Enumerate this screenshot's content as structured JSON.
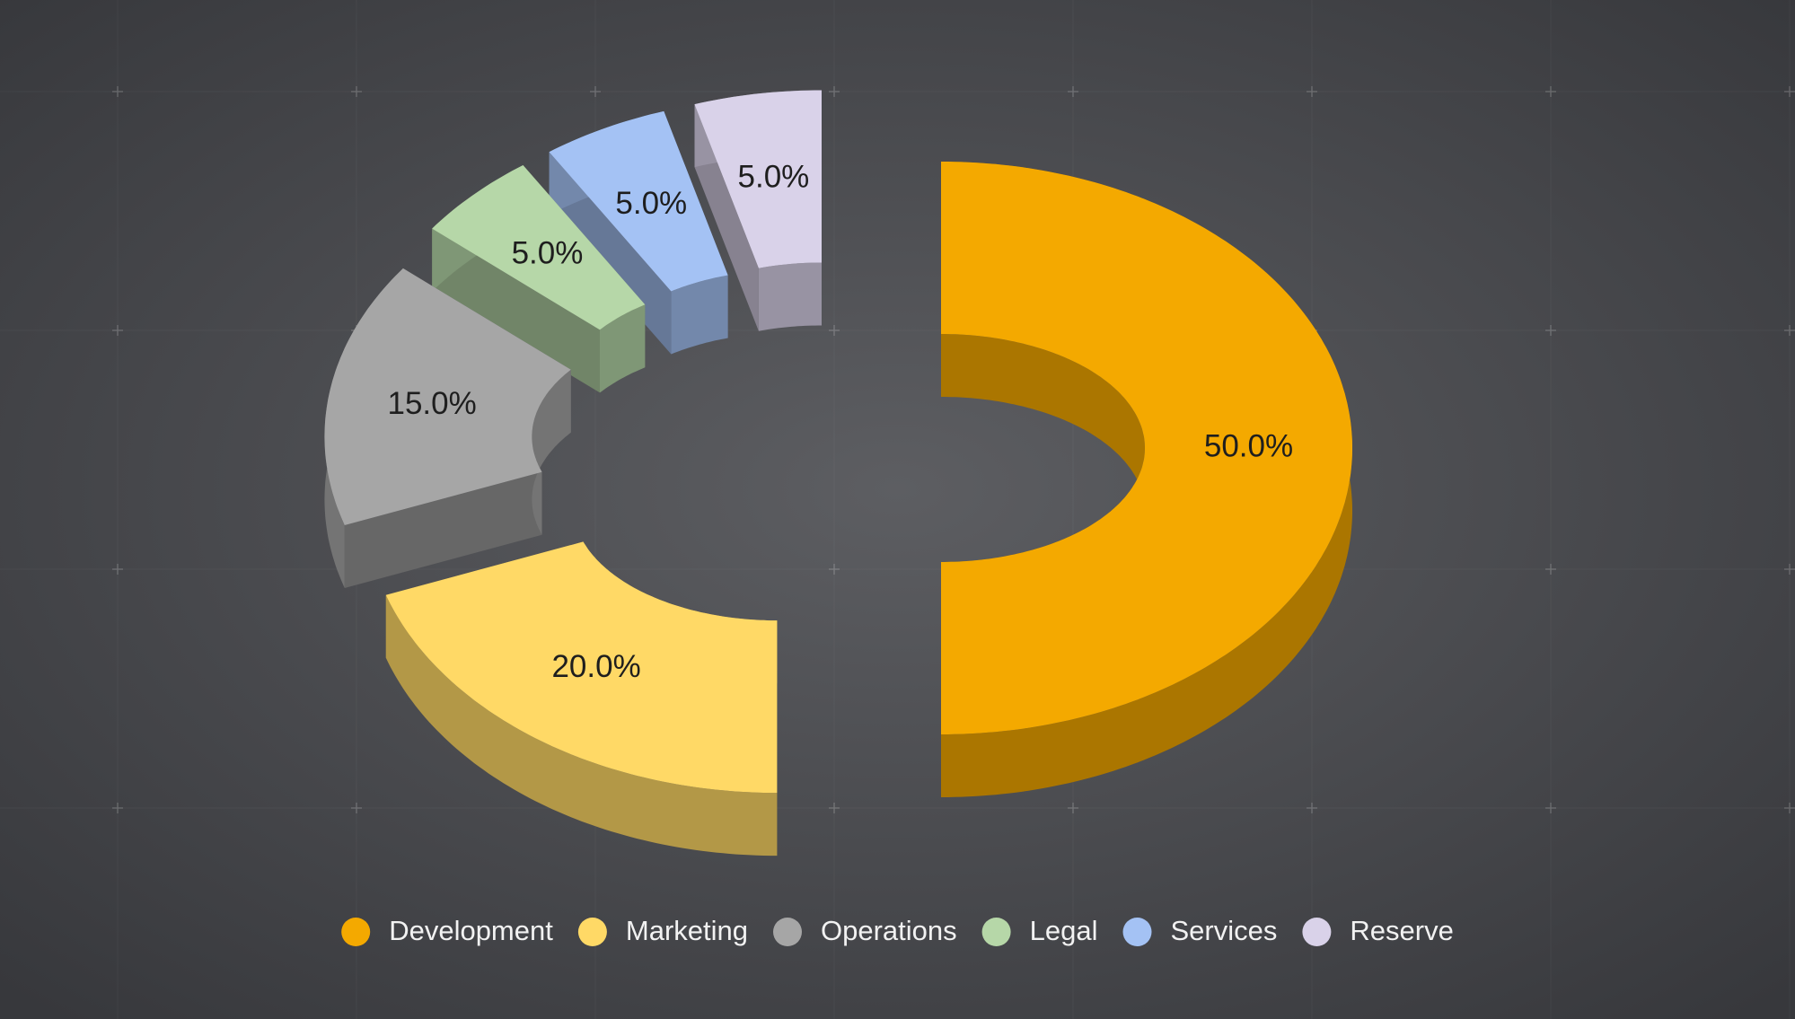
{
  "chart_data": {
    "type": "donut",
    "categories": [
      "Development",
      "Marketing",
      "Operations",
      "Legal",
      "Services",
      "Reserve"
    ],
    "values": [
      50,
      20,
      15,
      5,
      5,
      5
    ],
    "value_labels": [
      "50.0%",
      "20.0%",
      "15.0%",
      "5.0%",
      "5.0%",
      "5.0%"
    ],
    "colors": [
      "#f4a900",
      "#ffd966",
      "#a6a6a6",
      "#b6d7a8",
      "#a4c2f4",
      "#d9d2e9"
    ],
    "legend": "bottom"
  }
}
